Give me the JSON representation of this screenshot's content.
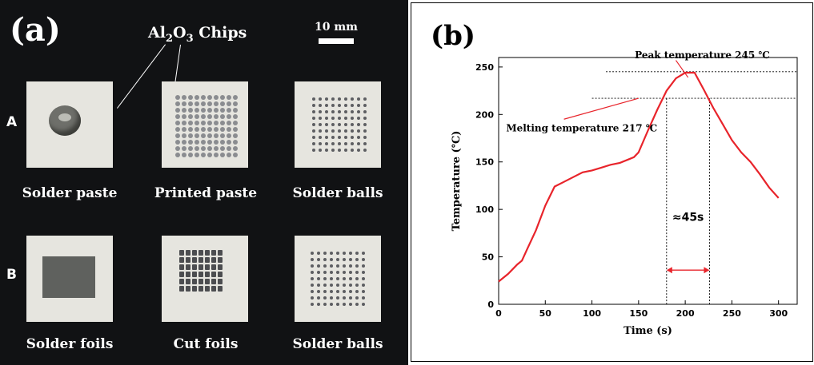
{
  "panel_a": {
    "label": "(a)",
    "chips_label_main": "Al",
    "chips_label_sub1": "2",
    "chips_label_mid": "O",
    "chips_label_sub2": "3",
    "chips_label_end": " Chips",
    "scale_label": "10 mm",
    "row_a_label": "A",
    "row_b_label": "B",
    "captions": [
      "Solder paste",
      "Printed paste",
      "Solder balls",
      "Solder foils",
      "Cut foils",
      "Solder balls"
    ],
    "colors": {
      "background": "#111214",
      "chip": "#e6e5df"
    }
  },
  "panel_b": {
    "label": "(b)",
    "chart_data": {
      "type": "line",
      "xlabel": "Time (s)",
      "ylabel": "Temperature (℃)",
      "xlim": [
        0,
        320
      ],
      "ylim": [
        0,
        260
      ],
      "x_ticks": [
        0,
        50,
        100,
        150,
        200,
        250,
        300
      ],
      "y_ticks": [
        0,
        50,
        100,
        150,
        200,
        250
      ],
      "series": [
        {
          "color": "#e8242b",
          "x": [
            0,
            10,
            20,
            25,
            30,
            40,
            50,
            60,
            70,
            80,
            90,
            100,
            110,
            120,
            130,
            140,
            145,
            150,
            160,
            170,
            180,
            190,
            200,
            210,
            220,
            230,
            240,
            250,
            260,
            270,
            280,
            290,
            300
          ],
          "y": [
            24,
            32,
            42,
            46,
            57,
            78,
            104,
            124,
            129,
            134,
            139,
            141,
            144,
            147,
            149,
            153,
            155,
            160,
            183,
            205,
            225,
            238,
            244,
            244,
            226,
            207,
            190,
            173,
            160,
            150,
            137,
            123,
            112
          ]
        }
      ],
      "reference_lines": {
        "peak_y": 245,
        "melting_y": 217,
        "start_x": 180,
        "end_x": 226
      },
      "annotations": {
        "peak": "Peak temperature 245 ℃",
        "melting": "Melting temperature 217 ℃",
        "duration": "≈45s"
      }
    }
  }
}
